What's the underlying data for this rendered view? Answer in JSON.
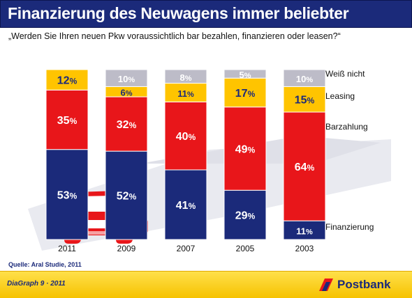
{
  "header": {
    "title": "Finanzierung des Neuwagens immer beliebter",
    "question": "„Werden Sie Ihren neuen Pkw voraussichtlich bar bezahlen, finanzieren oder leasen?“"
  },
  "source": "Quelle: Aral Studie, 2011",
  "footer": {
    "label": "DiaGraph 9 · 2011",
    "brand": "Postbank"
  },
  "colors": {
    "title_bar": "#1b2a7a",
    "finanzierung": "#1b2a7a",
    "barzahlung": "#e8161a",
    "leasing": "#ffc400",
    "weiss_nicht": "#bdbcc8",
    "footer": "#f6c200"
  },
  "chart_data": {
    "type": "bar",
    "stacked": true,
    "unit": "%",
    "categories": [
      "2011",
      "2009",
      "2007",
      "2005",
      "2003"
    ],
    "series": [
      {
        "name": "Finanzierung",
        "values": [
          53,
          52,
          41,
          29,
          11
        ]
      },
      {
        "name": "Barzahlung",
        "values": [
          35,
          32,
          40,
          49,
          64
        ]
      },
      {
        "name": "Leasing",
        "values": [
          12,
          6,
          11,
          17,
          15
        ]
      },
      {
        "name": "Weiß nicht",
        "values": [
          0,
          10,
          8,
          5,
          10
        ]
      }
    ],
    "legend_position": "right",
    "grid": false
  }
}
